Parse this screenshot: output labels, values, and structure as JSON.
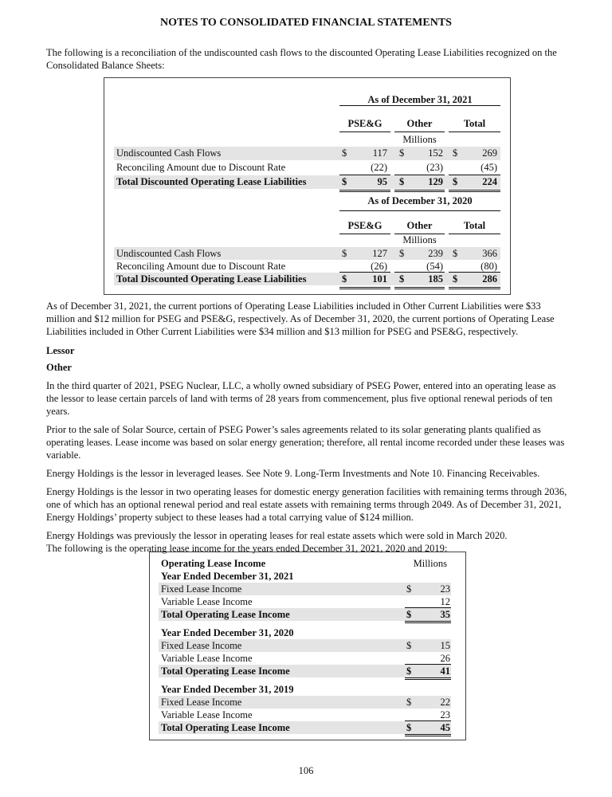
{
  "title": "NOTES TO CONSOLIDATED FINANCIAL STATEMENTS",
  "intro": "The following is a reconciliation of the undiscounted cash flows to the discounted Operating Lease Liabilities recognized on the Consolidated Balance Sheets:",
  "reconciliation": {
    "columns": [
      "PSE&G",
      "Other",
      "Total"
    ],
    "unit": "Millions",
    "periods": [
      {
        "heading": "As of December 31, 2021",
        "rows": [
          {
            "label": "Undiscounted Cash Flows",
            "dollar": "$",
            "values": [
              "117",
              "152",
              "269"
            ]
          },
          {
            "label": "Reconciling Amount due to Discount Rate",
            "dollar": "",
            "values": [
              "(22)",
              "(23)",
              "(45)"
            ]
          },
          {
            "label": "Total Discounted Operating Lease Liabilities",
            "dollar": "$",
            "values": [
              "95",
              "129",
              "224"
            ]
          }
        ]
      },
      {
        "heading": "As of December 31, 2020",
        "rows": [
          {
            "label": "Undiscounted Cash Flows",
            "dollar": "$",
            "values": [
              "127",
              "239",
              "366"
            ]
          },
          {
            "label": "Reconciling Amount due to Discount Rate",
            "dollar": "",
            "values": [
              "(26)",
              "(54)",
              "(80)"
            ]
          },
          {
            "label": "Total Discounted Operating Lease Liabilities",
            "dollar": "$",
            "values": [
              "101",
              "185",
              "286"
            ]
          }
        ]
      }
    ]
  },
  "paragraphs": {
    "current_portions": "As of December 31, 2021, the current portions of Operating Lease Liabilities included in Other Current Liabilities were $33 million and $12 million for PSEG and PSE&G, respectively. As of December 31, 2020, the current portions of Operating Lease Liabilities included in Other Current Liabilities were $34 million and $13 million for PSEG and PSE&G, respectively.",
    "lessor_heading": "Lessor",
    "other_heading": "Other",
    "p1": "In the third quarter of 2021, PSEG Nuclear, LLC, a wholly owned subsidiary of PSEG Power, entered into an operating lease as the lessor to lease certain parcels of land with terms of 28 years from commencement, plus five optional renewal periods of ten years.",
    "p2": "Prior to the sale of Solar Source, certain of PSEG Power’s sales agreements related to its solar generating plants qualified as operating leases. Lease income was based on solar energy generation; therefore, all rental income recorded under these leases was variable.",
    "p3": "Energy Holdings is the lessor in leveraged leases. See Note 9. Long-Term Investments and Note 10. Financing Receivables.",
    "p4": "Energy Holdings is the lessor in two operating leases for domestic energy generation facilities with remaining terms through 2036, one of which has an optional renewal period and real estate assets with remaining terms through 2049. As of December 31, 2021, Energy Holdings’ property subject to these leases had a total carrying value of $124 million.",
    "p5a": "Energy Holdings was previously the lessor in operating leases for real estate assets which were sold in March 2020.",
    "p5b": "The following is the operating lease income for the years ended December 31, 2021, 2020 and 2019:"
  },
  "lease_income": {
    "heading": "Operating Lease Income",
    "unit": "Millions",
    "years": [
      {
        "heading": "Year Ended December 31, 2021",
        "rows": [
          {
            "label": "Fixed Lease Income",
            "dollar": "$",
            "value": "23"
          },
          {
            "label": "Variable Lease Income",
            "dollar": "",
            "value": "12"
          },
          {
            "label": "Total Operating Lease Income",
            "dollar": "$",
            "value": "35"
          }
        ]
      },
      {
        "heading": "Year Ended December 31, 2020",
        "rows": [
          {
            "label": "Fixed Lease Income",
            "dollar": "$",
            "value": "15"
          },
          {
            "label": "Variable Lease Income",
            "dollar": "",
            "value": "26"
          },
          {
            "label": "Total Operating Lease Income",
            "dollar": "$",
            "value": "41"
          }
        ]
      },
      {
        "heading": "Year Ended December 31, 2019",
        "rows": [
          {
            "label": "Fixed Lease Income",
            "dollar": "$",
            "value": "22"
          },
          {
            "label": "Variable Lease Income",
            "dollar": "",
            "value": "23"
          },
          {
            "label": "Total Operating Lease Income",
            "dollar": "$",
            "value": "45"
          }
        ]
      }
    ]
  },
  "page_number": "106"
}
